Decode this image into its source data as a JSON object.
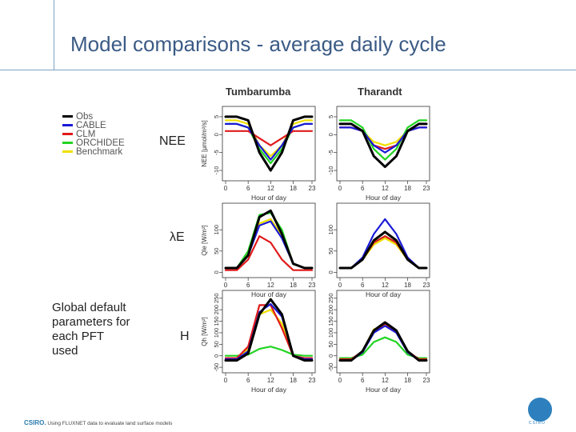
{
  "slide": {
    "title": "Model comparisons - average daily cycle",
    "note": "Global default parameters for each PFT used",
    "footer_brand": "CSIRO.",
    "footer_text": "Using FLUXNET data to evaluate land surface models",
    "logo_text": "CSIRO"
  },
  "row_labels": [
    "NEE",
    "λE",
    "H"
  ],
  "legend": [
    {
      "name": "Obs",
      "color": "#000000"
    },
    {
      "name": "CABLE",
      "color": "#1a1ad6"
    },
    {
      "name": "CLM",
      "color": "#e01a1a"
    },
    {
      "name": "ORCHIDEE",
      "color": "#22d422"
    },
    {
      "name": "Benchmark",
      "color": "#f0e000"
    }
  ],
  "chart_data": [
    {
      "type": "line",
      "site": "Tumbarumba",
      "xlabel": "Hour of day",
      "ylabel": "NEE [μmol/m²/s]",
      "x": [
        0,
        3,
        6,
        9,
        12,
        15,
        18,
        21,
        23
      ],
      "xticks": [
        0,
        6,
        12,
        18,
        23
      ],
      "ylim": [
        -12,
        7
      ],
      "yticks": [
        -10,
        -5,
        0,
        5
      ],
      "series": [
        {
          "name": "Obs",
          "values": [
            5,
            5,
            4,
            -5,
            -10,
            -5,
            4,
            5,
            5
          ]
        },
        {
          "name": "CABLE",
          "values": [
            3,
            3,
            2,
            -3,
            -7,
            -3,
            2,
            3,
            3
          ]
        },
        {
          "name": "CLM",
          "values": [
            1,
            1,
            1,
            -1,
            -3,
            -1,
            1,
            1,
            1
          ]
        },
        {
          "name": "ORCHIDEE",
          "values": [
            3,
            3,
            2,
            -4,
            -8,
            -4,
            2,
            3,
            3
          ]
        },
        {
          "name": "Benchmark",
          "values": [
            4,
            4,
            3,
            -3,
            -6,
            -3,
            3,
            4,
            4
          ]
        }
      ]
    },
    {
      "type": "line",
      "site": "Tharandt",
      "xlabel": "Hour of day",
      "ylabel": "",
      "x": [
        0,
        3,
        6,
        9,
        12,
        15,
        18,
        21,
        23
      ],
      "xticks": [
        0,
        6,
        12,
        18,
        23
      ],
      "ylim": [
        -12,
        7
      ],
      "yticks": [
        -10,
        -5,
        0,
        5
      ],
      "series": [
        {
          "name": "Obs",
          "values": [
            3,
            3,
            1,
            -6,
            -9,
            -6,
            1,
            3,
            3
          ]
        },
        {
          "name": "CABLE",
          "values": [
            2,
            2,
            1,
            -3,
            -5,
            -3,
            1,
            2,
            2
          ]
        },
        {
          "name": "CLM",
          "values": [
            2,
            2,
            1,
            -3,
            -4,
            -3,
            1,
            2,
            2
          ]
        },
        {
          "name": "ORCHIDEE",
          "values": [
            4,
            4,
            2,
            -4,
            -7,
            -4,
            2,
            4,
            4
          ]
        },
        {
          "name": "Benchmark",
          "values": [
            3,
            3,
            1,
            -2,
            -3,
            -2,
            1,
            3,
            3
          ]
        }
      ]
    },
    {
      "type": "line",
      "site": "Tumbarumba",
      "xlabel": "Hour of day",
      "ylabel": "Qle [W/m²]",
      "x": [
        0,
        3,
        6,
        9,
        12,
        15,
        18,
        21,
        23
      ],
      "xticks": [
        0,
        6,
        12,
        18,
        23
      ],
      "ylim": [
        -5,
        155
      ],
      "yticks": [
        0,
        50,
        100
      ],
      "series": [
        {
          "name": "Obs",
          "values": [
            10,
            10,
            40,
            130,
            145,
            90,
            20,
            10,
            10
          ]
        },
        {
          "name": "CABLE",
          "values": [
            10,
            10,
            40,
            110,
            120,
            80,
            20,
            10,
            10
          ]
        },
        {
          "name": "CLM",
          "values": [
            5,
            5,
            30,
            85,
            70,
            30,
            5,
            5,
            5
          ]
        },
        {
          "name": "ORCHIDEE",
          "values": [
            10,
            10,
            50,
            135,
            140,
            100,
            20,
            10,
            10
          ]
        },
        {
          "name": "Benchmark",
          "values": [
            10,
            10,
            45,
            115,
            125,
            85,
            20,
            10,
            10
          ]
        }
      ]
    },
    {
      "type": "line",
      "site": "Tharandt",
      "xlabel": "Hour of day",
      "ylabel": "",
      "x": [
        0,
        3,
        6,
        9,
        12,
        15,
        18,
        21,
        23
      ],
      "xticks": [
        0,
        6,
        12,
        18,
        23
      ],
      "ylim": [
        -5,
        155
      ],
      "yticks": [
        0,
        50,
        100
      ],
      "series": [
        {
          "name": "Obs",
          "values": [
            10,
            10,
            30,
            75,
            95,
            75,
            30,
            10,
            10
          ]
        },
        {
          "name": "CABLE",
          "values": [
            10,
            10,
            35,
            90,
            125,
            90,
            35,
            10,
            10
          ]
        },
        {
          "name": "CLM",
          "values": [
            10,
            10,
            30,
            70,
            85,
            70,
            30,
            10,
            10
          ]
        },
        {
          "name": "ORCHIDEE",
          "values": [
            10,
            10,
            30,
            70,
            85,
            70,
            30,
            10,
            10
          ]
        },
        {
          "name": "Benchmark",
          "values": [
            10,
            10,
            30,
            65,
            80,
            65,
            30,
            10,
            10
          ]
        }
      ]
    },
    {
      "type": "line",
      "site": "Tumbarumba",
      "xlabel": "Hour of day",
      "ylabel": "Qh [W/m²]",
      "x": [
        0,
        3,
        6,
        9,
        12,
        15,
        18,
        21,
        23
      ],
      "xticks": [
        0,
        6,
        12,
        18,
        23
      ],
      "ylim": [
        -60,
        270
      ],
      "yticks": [
        -50,
        0,
        50,
        100,
        150,
        200,
        250
      ],
      "series": [
        {
          "name": "Obs",
          "values": [
            -20,
            -20,
            10,
            180,
            245,
            180,
            0,
            -20,
            -20
          ]
        },
        {
          "name": "CABLE",
          "values": [
            -15,
            -15,
            20,
            190,
            225,
            170,
            0,
            -15,
            -15
          ]
        },
        {
          "name": "CLM",
          "values": [
            -10,
            -10,
            40,
            220,
            220,
            120,
            0,
            -10,
            -10
          ]
        },
        {
          "name": "ORCHIDEE",
          "values": [
            0,
            0,
            5,
            30,
            40,
            25,
            5,
            0,
            0
          ]
        },
        {
          "name": "Benchmark",
          "values": [
            -15,
            -15,
            30,
            180,
            200,
            140,
            0,
            -15,
            -15
          ]
        }
      ]
    },
    {
      "type": "line",
      "site": "Tharandt",
      "xlabel": "Hour of day",
      "ylabel": "",
      "x": [
        0,
        3,
        6,
        9,
        12,
        15,
        18,
        21,
        23
      ],
      "xticks": [
        0,
        6,
        12,
        18,
        23
      ],
      "ylim": [
        -60,
        270
      ],
      "yticks": [
        -50,
        0,
        50,
        100,
        150,
        200,
        250
      ],
      "series": [
        {
          "name": "Obs",
          "values": [
            -20,
            -20,
            20,
            110,
            145,
            110,
            20,
            -20,
            -20
          ]
        },
        {
          "name": "CABLE",
          "values": [
            -20,
            -20,
            15,
            100,
            130,
            100,
            15,
            -20,
            -20
          ]
        },
        {
          "name": "CLM",
          "values": [
            -15,
            -15,
            20,
            105,
            140,
            105,
            20,
            -15,
            -15
          ]
        },
        {
          "name": "ORCHIDEE",
          "values": [
            -10,
            -10,
            5,
            60,
            80,
            60,
            5,
            -10,
            -10
          ]
        },
        {
          "name": "Benchmark",
          "values": [
            -20,
            -20,
            20,
            115,
            135,
            110,
            20,
            -20,
            -20
          ]
        }
      ]
    }
  ]
}
